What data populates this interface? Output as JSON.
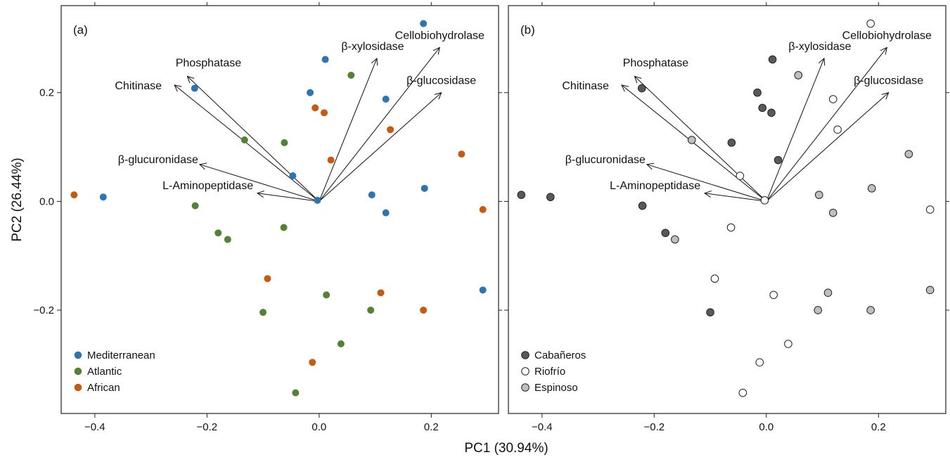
{
  "chart_data": {
    "type": "scatter",
    "xlabel": "PC1 (30.94%)",
    "ylabel": "PC2 (26.44%)",
    "xlim": [
      -0.46,
      0.32
    ],
    "ylim": [
      -0.39,
      0.36
    ],
    "x_ticks": [
      -0.4,
      -0.2,
      0.0,
      0.2
    ],
    "x_tick_labels": [
      "−0.4",
      "−0.2",
      "0.0",
      "0.2"
    ],
    "y_ticks": [
      -0.2,
      0.0,
      0.2
    ],
    "y_tick_labels": [
      "−0.2",
      "0.0",
      "0.2"
    ],
    "grid": false,
    "colors": {
      "Mediterranean": "#2e74b5",
      "Atlantic": "#548235",
      "African": "#c55a11",
      "Cabañeros": "#595959",
      "Riofrío": "#ffffff",
      "Espinoso": "#bfbfbf"
    },
    "vectors": [
      {
        "label": "Cellobiohydrolase",
        "x": 0.215,
        "y": 0.283
      },
      {
        "label": "β-xylosidase",
        "x": 0.103,
        "y": 0.263
      },
      {
        "label": "β-glucosidase",
        "x": 0.218,
        "y": 0.2
      },
      {
        "label": "Phosphatase",
        "x": -0.235,
        "y": 0.23
      },
      {
        "label": "Chitinase",
        "x": -0.258,
        "y": 0.214
      },
      {
        "label": "β-glucuronidase",
        "x": -0.213,
        "y": 0.068
      },
      {
        "label": "L-Aminopeptidase",
        "x": -0.11,
        "y": 0.015
      }
    ],
    "points": [
      {
        "x": -0.437,
        "y": 0.012,
        "region": "African",
        "site": "Cabañeros"
      },
      {
        "x": -0.385,
        "y": 0.008,
        "region": "Mediterranean",
        "site": "Cabañeros"
      },
      {
        "x": -0.222,
        "y": 0.208,
        "region": "Mediterranean",
        "site": "Cabañeros"
      },
      {
        "x": -0.221,
        "y": -0.008,
        "region": "Atlantic",
        "site": "Cabañeros"
      },
      {
        "x": -0.18,
        "y": -0.058,
        "region": "Atlantic",
        "site": "Cabañeros"
      },
      {
        "x": -0.163,
        "y": -0.07,
        "region": "Atlantic",
        "site": "Espinoso"
      },
      {
        "x": -0.133,
        "y": 0.113,
        "region": "Atlantic",
        "site": "Espinoso"
      },
      {
        "x": -0.1,
        "y": -0.204,
        "region": "Atlantic",
        "site": "Cabañeros"
      },
      {
        "x": -0.092,
        "y": -0.142,
        "region": "African",
        "site": "Riofrío"
      },
      {
        "x": -0.062,
        "y": 0.108,
        "region": "Atlantic",
        "site": "Cabañeros"
      },
      {
        "x": -0.063,
        "y": -0.048,
        "region": "Atlantic",
        "site": "Riofrío"
      },
      {
        "x": -0.047,
        "y": 0.047,
        "region": "Mediterranean",
        "site": "Riofrío"
      },
      {
        "x": -0.042,
        "y": -0.352,
        "region": "Atlantic",
        "site": "Riofrío"
      },
      {
        "x": -0.016,
        "y": 0.2,
        "region": "Mediterranean",
        "site": "Cabañeros"
      },
      {
        "x": -0.012,
        "y": -0.296,
        "region": "African",
        "site": "Riofrío"
      },
      {
        "x": -0.007,
        "y": 0.172,
        "region": "African",
        "site": "Cabañeros"
      },
      {
        "x": -0.003,
        "y": 0.002,
        "region": "Mediterranean",
        "site": "Riofrío"
      },
      {
        "x": 0.009,
        "y": 0.163,
        "region": "African",
        "site": "Cabañeros"
      },
      {
        "x": 0.011,
        "y": 0.261,
        "region": "Mediterranean",
        "site": "Cabañeros"
      },
      {
        "x": 0.013,
        "y": -0.172,
        "region": "Atlantic",
        "site": "Riofrío"
      },
      {
        "x": 0.021,
        "y": 0.076,
        "region": "African",
        "site": "Cabañeros"
      },
      {
        "x": 0.039,
        "y": -0.262,
        "region": "Atlantic",
        "site": "Riofrío"
      },
      {
        "x": 0.057,
        "y": 0.232,
        "region": "Atlantic",
        "site": "Espinoso"
      },
      {
        "x": 0.092,
        "y": -0.2,
        "region": "Atlantic",
        "site": "Espinoso"
      },
      {
        "x": 0.094,
        "y": 0.012,
        "region": "Mediterranean",
        "site": "Espinoso"
      },
      {
        "x": 0.11,
        "y": -0.168,
        "region": "African",
        "site": "Espinoso"
      },
      {
        "x": 0.119,
        "y": 0.188,
        "region": "Mediterranean",
        "site": "Riofrío"
      },
      {
        "x": 0.119,
        "y": -0.021,
        "region": "Mediterranean",
        "site": "Espinoso"
      },
      {
        "x": 0.127,
        "y": 0.132,
        "region": "African",
        "site": "Riofrío"
      },
      {
        "x": 0.186,
        "y": 0.327,
        "region": "Mediterranean",
        "site": "Riofrío"
      },
      {
        "x": 0.186,
        "y": -0.2,
        "region": "African",
        "site": "Espinoso"
      },
      {
        "x": 0.188,
        "y": 0.024,
        "region": "Mediterranean",
        "site": "Espinoso"
      },
      {
        "x": 0.254,
        "y": 0.087,
        "region": "African",
        "site": "Espinoso"
      },
      {
        "x": 0.292,
        "y": -0.015,
        "region": "African",
        "site": "Riofrío"
      },
      {
        "x": 0.292,
        "y": -0.163,
        "region": "Mediterranean",
        "site": "Espinoso"
      }
    ],
    "panels": [
      {
        "label": "(a)",
        "group_by": "region",
        "legend": [
          "Mediterranean",
          "Atlantic",
          "African"
        ],
        "legend_position": "bottom-left"
      },
      {
        "label": "(b)",
        "group_by": "site",
        "legend": [
          "Cabañeros",
          "Riofrío",
          "Espinoso"
        ],
        "legend_position": "bottom-left"
      }
    ]
  }
}
